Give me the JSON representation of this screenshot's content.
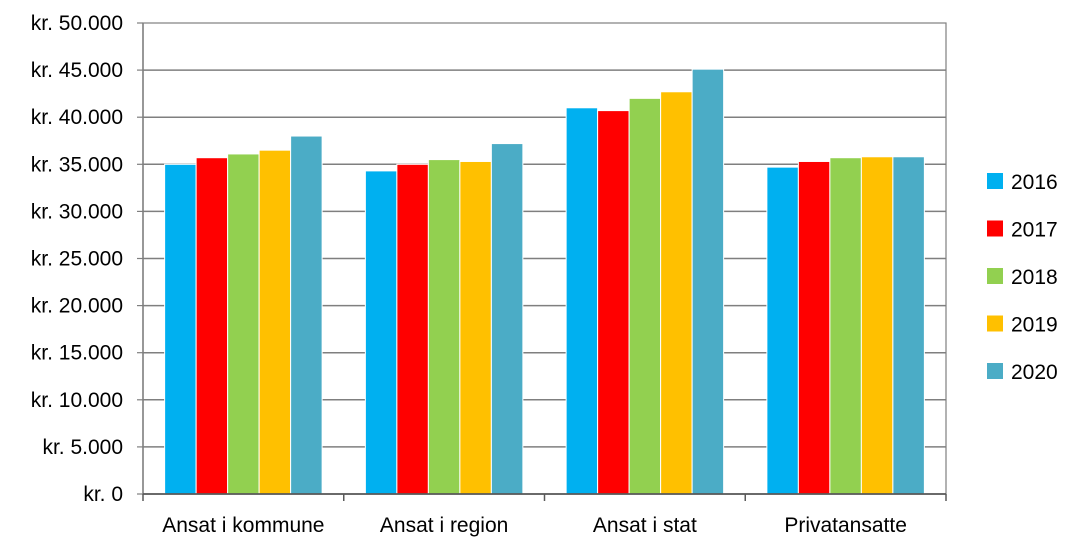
{
  "chart_data": {
    "type": "bar",
    "categories": [
      "Ansat i kommune",
      "Ansat i region",
      "Ansat i stat",
      "Privatansatte"
    ],
    "series": [
      {
        "name": "2016",
        "color": "#00B0F0",
        "values": [
          35000,
          34300,
          41000,
          34700
        ]
      },
      {
        "name": "2017",
        "color": "#FF0000",
        "values": [
          35700,
          35000,
          40700,
          35300
        ]
      },
      {
        "name": "2018",
        "color": "#92D050",
        "values": [
          36100,
          35500,
          42000,
          35700
        ]
      },
      {
        "name": "2019",
        "color": "#FFC000",
        "values": [
          36500,
          35300,
          42700,
          35800
        ]
      },
      {
        "name": "2020",
        "color": "#4BACC6",
        "values": [
          38000,
          37200,
          45100,
          35800
        ]
      }
    ],
    "ylim": [
      0,
      50000
    ],
    "y_ticks": [
      0,
      5000,
      10000,
      15000,
      20000,
      25000,
      30000,
      35000,
      40000,
      45000,
      50000
    ],
    "y_tick_labels": [
      "kr. 0",
      "kr. 5.000",
      "kr. 10.000",
      "kr. 15.000",
      "kr. 20.000",
      "kr. 25.000",
      "kr. 30.000",
      "kr. 35.000",
      "kr. 40.000",
      "kr. 45.000",
      "kr. 50.000"
    ],
    "grid": true,
    "legend_position": "right",
    "title": "",
    "xlabel": "",
    "ylabel": ""
  }
}
